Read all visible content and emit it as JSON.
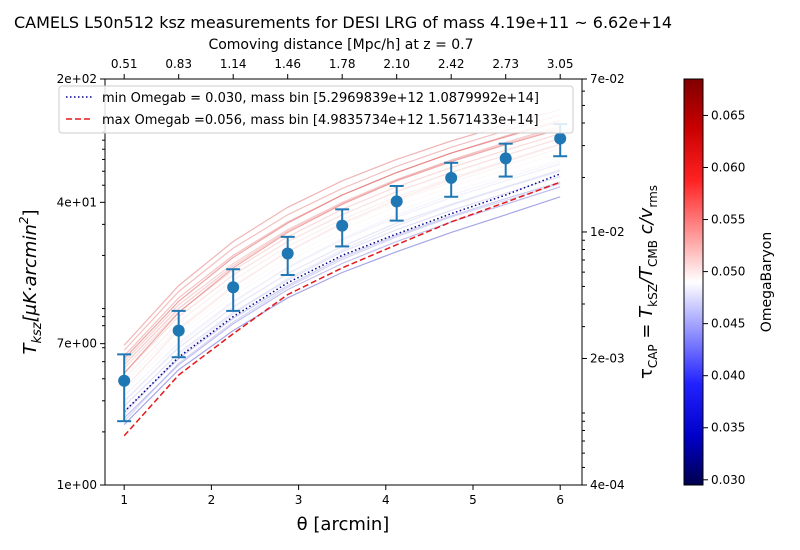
{
  "chart_data": {
    "type": "line",
    "title": "CAMELS L50n512 ksz measurements for DESI LRG of mass 4.19e+11 ~ 6.62e+14",
    "xlabel": "θ [arcmin]",
    "ylabel": "T_ksz[μK·arcmin²]",
    "ylabel_main": "T",
    "ylabel_sub": "ksz",
    "ylabel_rest": "[μK·arcmin",
    "ylabel_sup": "2",
    "ylabel_close": "]",
    "y2label": "τ_CAP = T_kSZ/T_CMB c/v_rms",
    "y2label_parts": [
      "τ",
      "CAP",
      " = T",
      "kSZ",
      "/T",
      "CMB",
      " c/v",
      "rms"
    ],
    "top_xlabel": "Comoving distance [Mpc/h] at z = 0.7",
    "xlim": [
      0.78,
      6.25
    ],
    "ylim": [
      1,
      200
    ],
    "yscale": "log",
    "x_ticks": [
      1,
      2,
      3,
      4,
      5,
      6
    ],
    "x_tick_labels": [
      "1",
      "2",
      "3",
      "4",
      "5",
      "6"
    ],
    "y_ticks": [
      1,
      40,
      200
    ],
    "y_tick_labels": [
      "1e+00",
      "4e+01",
      "2e+02"
    ],
    "y_mid_tick": 7,
    "y_mid_tick_label": "7e+00",
    "y2_ticks": [
      0.0004,
      0.002,
      0.01,
      0.07
    ],
    "y2_tick_labels": [
      "4e-04",
      "2e-03",
      "1e-02",
      "7e-02"
    ],
    "top_ticks": [
      1,
      1.625,
      2.25,
      2.875,
      3.5,
      4.125,
      4.75,
      5.375,
      6
    ],
    "top_tick_labels": [
      "0.51",
      "0.83",
      "1.14",
      "1.46",
      "1.78",
      "2.10",
      "2.42",
      "2.73",
      "3.05"
    ],
    "theta": [
      1,
      1.625,
      2.25,
      2.875,
      3.5,
      4.125,
      4.75,
      5.375,
      6
    ],
    "measurements": {
      "name": "data",
      "values": [
        3.9,
        7.5,
        13.2,
        20.5,
        29.5,
        40.5,
        55.0,
        71.0,
        92.0
      ],
      "errors": [
        1.6,
        2.2,
        3.5,
        5.0,
        7.0,
        9.0,
        12.0,
        15.0,
        19.0
      ]
    },
    "series": [
      {
        "name": "min Omegab = 0.030, mass bin [5.2969839e+12 1.0879992e+14]",
        "style": "dotted",
        "color": "#00008b",
        "values": [
          2.6,
          5.3,
          9.0,
          14.0,
          20.0,
          26.5,
          34.5,
          44.0,
          58.0
        ]
      },
      {
        "name": "max Omegab =0.056, mass bin [4.9835734e+12 1.5671433e+14]",
        "style": "dashed",
        "color": "#e31a1c",
        "values": [
          1.9,
          4.2,
          7.2,
          12.0,
          17.0,
          23.0,
          31.0,
          40.0,
          52.0
        ]
      }
    ],
    "legend_position": "top-left",
    "colorbar": {
      "label": "OmegaBaryon",
      "range": [
        0.0295,
        0.0685
      ],
      "ticks": [
        0.03,
        0.035,
        0.04,
        0.045,
        0.05,
        0.055,
        0.06,
        0.065
      ],
      "tick_labels": [
        "0.030",
        "0.035",
        "0.040",
        "0.045",
        "0.050",
        "0.055",
        "0.060",
        "0.065"
      ]
    },
    "background_curves": [
      {
        "omega": 0.031,
        "values": [
          2.2,
          4.5,
          7.5,
          11.5,
          16.0,
          21.0,
          27.0,
          34.0,
          43.0
        ]
      },
      {
        "omega": 0.036,
        "values": [
          2.4,
          4.8,
          8.2,
          12.8,
          18.0,
          24.0,
          31.0,
          39.0,
          49.0
        ]
      },
      {
        "omega": 0.039,
        "values": [
          2.6,
          5.2,
          8.8,
          13.5,
          19.5,
          26.0,
          33.5,
          42.0,
          52.0
        ]
      },
      {
        "omega": 0.041,
        "values": [
          2.3,
          4.9,
          8.4,
          13.2,
          19.0,
          25.5,
          33.0,
          41.0,
          51.0
        ]
      },
      {
        "omega": 0.043,
        "values": [
          2.8,
          5.6,
          9.5,
          14.5,
          21.0,
          28.0,
          36.0,
          45.0,
          56.0
        ]
      },
      {
        "omega": 0.044,
        "values": [
          3.0,
          6.0,
          10.2,
          15.8,
          22.5,
          30.5,
          39.0,
          49.0,
          61.0
        ]
      },
      {
        "omega": 0.045,
        "values": [
          2.5,
          5.4,
          9.3,
          14.8,
          21.5,
          29.5,
          38.5,
          48.5,
          60.0
        ]
      },
      {
        "omega": 0.046,
        "values": [
          3.2,
          6.4,
          11.0,
          17.0,
          24.5,
          33.0,
          42.5,
          53.0,
          66.0
        ]
      },
      {
        "omega": 0.047,
        "values": [
          2.9,
          6.2,
          10.8,
          17.2,
          25.0,
          34.0,
          44.0,
          55.0,
          68.0
        ]
      },
      {
        "omega": 0.048,
        "values": [
          3.4,
          6.9,
          11.8,
          18.5,
          26.5,
          35.5,
          46.0,
          57.0,
          70.0
        ]
      },
      {
        "omega": 0.049,
        "values": [
          3.1,
          6.6,
          11.5,
          18.2,
          26.5,
          36.0,
          47.0,
          59.0,
          73.0
        ]
      },
      {
        "omega": 0.05,
        "values": [
          3.6,
          7.3,
          12.5,
          19.5,
          28.0,
          38.0,
          49.0,
          61.0,
          76.0
        ]
      },
      {
        "omega": 0.051,
        "values": [
          3.8,
          7.8,
          13.5,
          21.0,
          30.0,
          40.5,
          52.0,
          65.0,
          81.0
        ]
      },
      {
        "omega": 0.052,
        "values": [
          4.0,
          8.4,
          14.5,
          22.5,
          32.0,
          43.0,
          55.0,
          69.0,
          86.0
        ]
      },
      {
        "omega": 0.053,
        "values": [
          3.5,
          7.6,
          13.3,
          21.0,
          30.5,
          41.5,
          54.0,
          68.0,
          85.0
        ]
      },
      {
        "omega": 0.055,
        "values": [
          4.3,
          9.0,
          15.5,
          24.0,
          34.0,
          46.0,
          59.0,
          74.0,
          92.0
        ]
      },
      {
        "omega": 0.056,
        "values": [
          4.6,
          9.6,
          16.5,
          25.5,
          36.5,
          49.0,
          63.0,
          79.0,
          98.0
        ]
      },
      {
        "omega": 0.058,
        "values": [
          5.0,
          10.5,
          18.0,
          28.0,
          40.0,
          54.0,
          69.0,
          86.0,
          106.0
        ]
      },
      {
        "omega": 0.059,
        "values": [
          4.8,
          10.0,
          17.5,
          27.5,
          39.5,
          53.5,
          69.5,
          87.5,
          108.0
        ]
      },
      {
        "omega": 0.061,
        "values": [
          5.4,
          11.5,
          20.0,
          31.0,
          44.0,
          59.0,
          76.0,
          95.0,
          117.0
        ]
      },
      {
        "omega": 0.062,
        "values": [
          5.8,
          12.5,
          22.0,
          34.0,
          48.0,
          64.0,
          82.0,
          102.0,
          125.0
        ]
      },
      {
        "omega": 0.064,
        "values": [
          6.2,
          13.5,
          24.0,
          37.5,
          53.0,
          70.0,
          89.0,
          110.0,
          134.0
        ]
      },
      {
        "omega": 0.066,
        "values": [
          4.3,
          9.5,
          17.0,
          27.0,
          39.0,
          53.0,
          68.0,
          85.0,
          104.0
        ]
      },
      {
        "omega": 0.067,
        "values": [
          5.2,
          11.0,
          19.5,
          30.5,
          44.0,
          59.0,
          76.0,
          94.0,
          115.0
        ]
      }
    ]
  }
}
